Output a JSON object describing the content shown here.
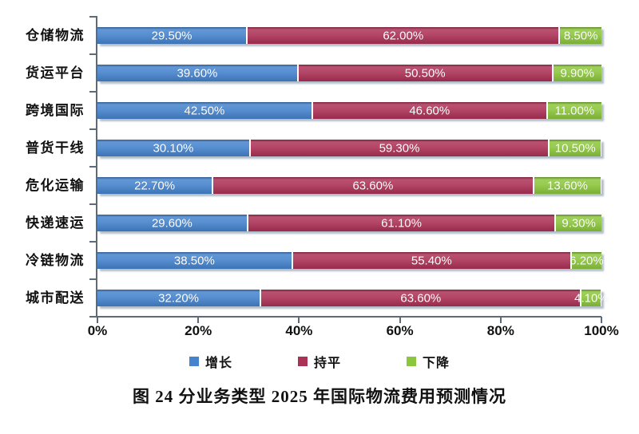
{
  "figure": {
    "caption": "图 24  分业务类型 2025 年国际物流费用预测情况"
  },
  "chart_data": {
    "type": "bar",
    "orientation": "horizontal",
    "stacked": true,
    "unit": "%",
    "grid": false,
    "categories": [
      "仓储物流",
      "货运平台",
      "跨境国际",
      "普货干线",
      "危化运输",
      "快递速运",
      "冷链物流",
      "城市配送"
    ],
    "series": [
      {
        "name": "增长",
        "color": "#4583cd",
        "values": [
          29.5,
          39.6,
          42.5,
          30.1,
          22.7,
          29.6,
          38.5,
          32.2
        ],
        "labels": [
          "29.50%",
          "39.60%",
          "42.50%",
          "30.10%",
          "22.70%",
          "29.60%",
          "38.50%",
          "32.20%"
        ]
      },
      {
        "name": "持平",
        "color": "#ac3156",
        "values": [
          62.0,
          50.5,
          46.6,
          59.3,
          63.6,
          61.1,
          55.4,
          63.6
        ],
        "labels": [
          "62.00%",
          "50.50%",
          "46.60%",
          "59.30%",
          "63.60%",
          "61.10%",
          "55.40%",
          "63.60%"
        ]
      },
      {
        "name": "下降",
        "color": "#8cc63c",
        "values": [
          8.5,
          9.9,
          11.0,
          10.5,
          13.6,
          9.3,
          6.2,
          4.1
        ],
        "labels": [
          "8.50%",
          "9.90%",
          "11.00%",
          "10.50%",
          "13.60%",
          "9.30%",
          "6.20%",
          "4.10%"
        ]
      }
    ],
    "x_axis": {
      "range": [
        0,
        100
      ],
      "tick_labels": [
        "0%",
        "20%",
        "40%",
        "60%",
        "80%",
        "100%"
      ]
    },
    "legend": {
      "position": "bottom",
      "entries": [
        "增长",
        "持平",
        "下降"
      ]
    }
  }
}
